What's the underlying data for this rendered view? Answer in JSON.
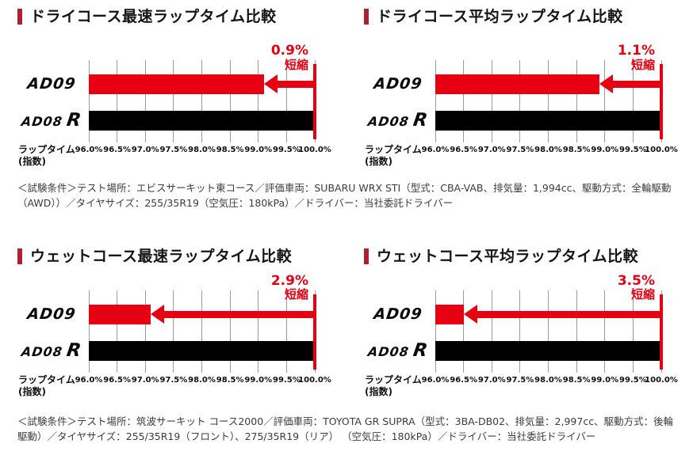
{
  "colors": {
    "accent_red": "#e60012",
    "title_marker": "#ac1f34",
    "bar_black": "#000000",
    "gridline": "#9b9b9b",
    "note_text": "#3c3c3c"
  },
  "brand": {
    "ad09": "AD09",
    "ad08_base": "AD08",
    "ad08_suffix": "R"
  },
  "axis_label": {
    "line1": "ラップタイム",
    "line2": "(指数)"
  },
  "chart_data": [
    {
      "type": "bar",
      "orientation": "horizontal",
      "title": "ドライコース最速ラップタイム比較",
      "categories": [
        "AD09",
        "AD08 R"
      ],
      "values": [
        99.1,
        100.0
      ],
      "colors": [
        "#e60012",
        "#000000"
      ],
      "annotation_value": "0.9%",
      "annotation_label": "短縮",
      "reduction_pct": 0.9,
      "xlabel": "ラップタイム(指数)",
      "xlim": [
        96.0,
        100.0
      ],
      "grid": true,
      "ticks": [
        "96.0%",
        "96.5%",
        "97.0%",
        "97.5%",
        "98.0%",
        "98.5%",
        "99.0%",
        "99.5%",
        "100.0%"
      ]
    },
    {
      "type": "bar",
      "orientation": "horizontal",
      "title": "ドライコース平均ラップタイム比較",
      "categories": [
        "AD09",
        "AD08 R"
      ],
      "values": [
        98.9,
        100.0
      ],
      "colors": [
        "#e60012",
        "#000000"
      ],
      "annotation_value": "1.1%",
      "annotation_label": "短縮",
      "reduction_pct": 1.1,
      "xlabel": "ラップタイム(指数)",
      "xlim": [
        96.0,
        100.0
      ],
      "grid": true,
      "ticks": [
        "96.0%",
        "96.5%",
        "97.0%",
        "97.5%",
        "98.0%",
        "98.5%",
        "99.0%",
        "99.5%",
        "100.0%"
      ]
    },
    {
      "type": "bar",
      "orientation": "horizontal",
      "title": "ウェットコース最速ラップタイム比較",
      "categories": [
        "AD09",
        "AD08 R"
      ],
      "values": [
        97.1,
        100.0
      ],
      "colors": [
        "#e60012",
        "#000000"
      ],
      "annotation_value": "2.9%",
      "annotation_label": "短縮",
      "reduction_pct": 2.9,
      "xlabel": "ラップタイム(指数)",
      "xlim": [
        96.0,
        100.0
      ],
      "grid": true,
      "ticks": [
        "96.0%",
        "96.5%",
        "97.0%",
        "97.5%",
        "98.0%",
        "98.5%",
        "99.0%",
        "99.5%",
        "100.0%"
      ]
    },
    {
      "type": "bar",
      "orientation": "horizontal",
      "title": "ウェットコース平均ラップタイム比較",
      "categories": [
        "AD09",
        "AD08 R"
      ],
      "values": [
        96.5,
        100.0
      ],
      "colors": [
        "#e60012",
        "#000000"
      ],
      "annotation_value": "3.5%",
      "annotation_label": "短縮",
      "reduction_pct": 3.5,
      "xlabel": "ラップタイム(指数)",
      "xlim": [
        96.0,
        100.0
      ],
      "grid": true,
      "ticks": [
        "96.0%",
        "96.5%",
        "97.0%",
        "97.5%",
        "98.0%",
        "98.5%",
        "99.0%",
        "99.5%",
        "100.0%"
      ]
    }
  ],
  "conditions": [
    "＜試験条件＞テスト場所：エビスサーキット東コース／評価車両：SUBARU WRX STI（型式：CBA-VAB、排気量：1,994cc、駆動方式：全輪駆動（AWD））／タイヤサイズ：255/35R19（空気圧：180kPa）／ドライバー：当社委託ドライバー",
    "＜試験条件＞テスト場所：筑波サーキット コース2000／評価車両：TOYOTA GR SUPRA（型式：3BA-DB02、排気量：2,997cc、駆動方式：後輪駆動）／タイヤサイズ：255/35R19（フロント）、275/35R19（リア） （空気圧：180kPa）／ドライバー：当社委託ドライバー"
  ]
}
